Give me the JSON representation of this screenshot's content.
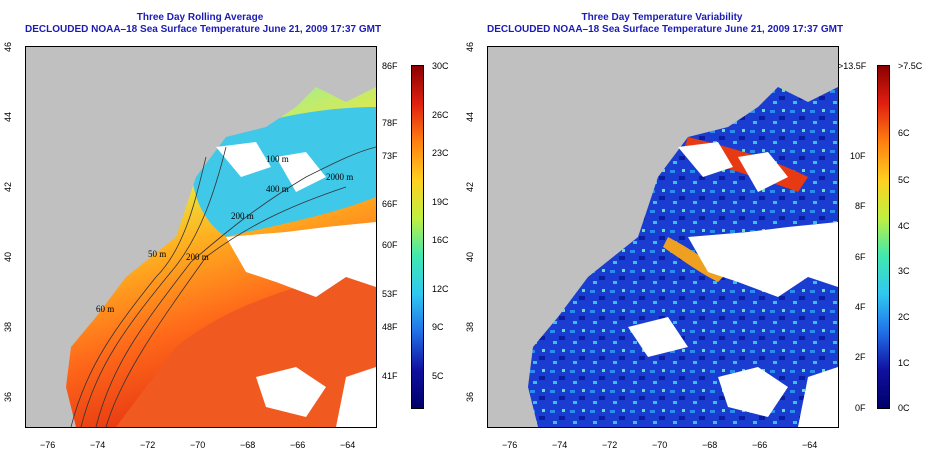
{
  "left_panel": {
    "title_line1": "Three Day Rolling Average",
    "title_line2": "DECLOUDED NOAA–18 Sea Surface Temperature June 21, 2009 17:37 GMT",
    "colorbar_f": [
      "86F",
      "78F",
      "73F",
      "66F",
      "60F",
      "53F",
      "48F",
      "41F"
    ],
    "colorbar_c": [
      "30C",
      "26C",
      "23C",
      "19C",
      "16C",
      "12C",
      "9C",
      "5C"
    ],
    "contour_labels": [
      "100 m",
      "2000 m",
      "400 m",
      "200 m",
      "200 m",
      "60 m",
      "50 m"
    ]
  },
  "right_panel": {
    "title_line1": "Three Day Temperature Variability",
    "title_line2": "DECLOUDED NOAA–18 Sea Surface Temperature June 21, 2009 17:37 GMT",
    "colorbar_f": [
      ">13.5F",
      "10F",
      "8F",
      "6F",
      "4F",
      "2F",
      "0F"
    ],
    "colorbar_c": [
      ">7.5C",
      "6C",
      "5C",
      "4C",
      "3C",
      "2C",
      "1C",
      "0C"
    ]
  },
  "axes": {
    "x_ticks": [
      "−76",
      "−74",
      "−72",
      "−70",
      "−68",
      "−66",
      "−64"
    ],
    "y_ticks": [
      "46",
      "44",
      "42",
      "40",
      "38",
      "36"
    ]
  },
  "colors": {
    "title": "#1c1cb4",
    "land": "#c0c0c0",
    "cloud": "#ffffff"
  }
}
